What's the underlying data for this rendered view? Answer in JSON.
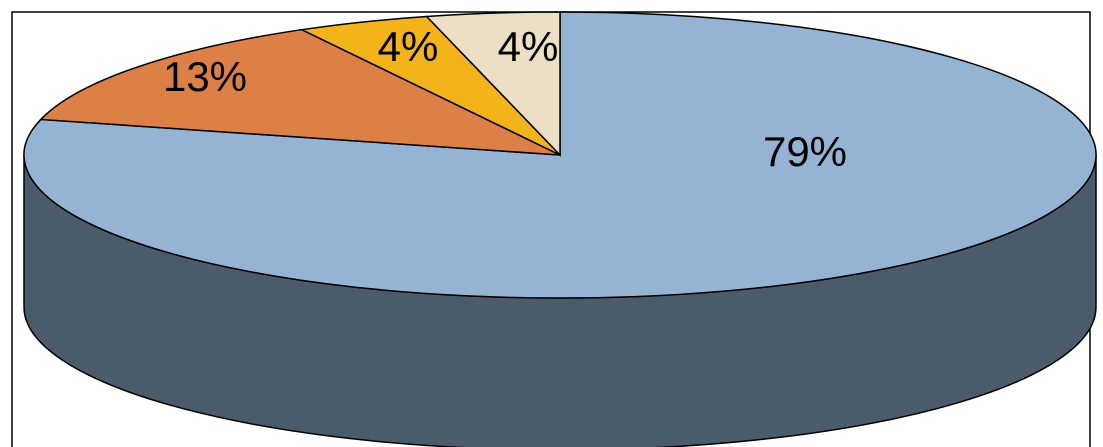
{
  "chart_data": {
    "type": "pie",
    "style": "3d",
    "title": "",
    "slices": [
      {
        "label": "79%",
        "value": 79,
        "color": "#95b3d2"
      },
      {
        "label": "13%",
        "value": 13,
        "color": "#dd8048"
      },
      {
        "label": "4%",
        "value": 4,
        "color": "#f3b31b"
      },
      {
        "label": "4%",
        "value": 4,
        "color": "#ecdfc6"
      }
    ],
    "side_color": "#4a5b6b",
    "legend": "none"
  }
}
